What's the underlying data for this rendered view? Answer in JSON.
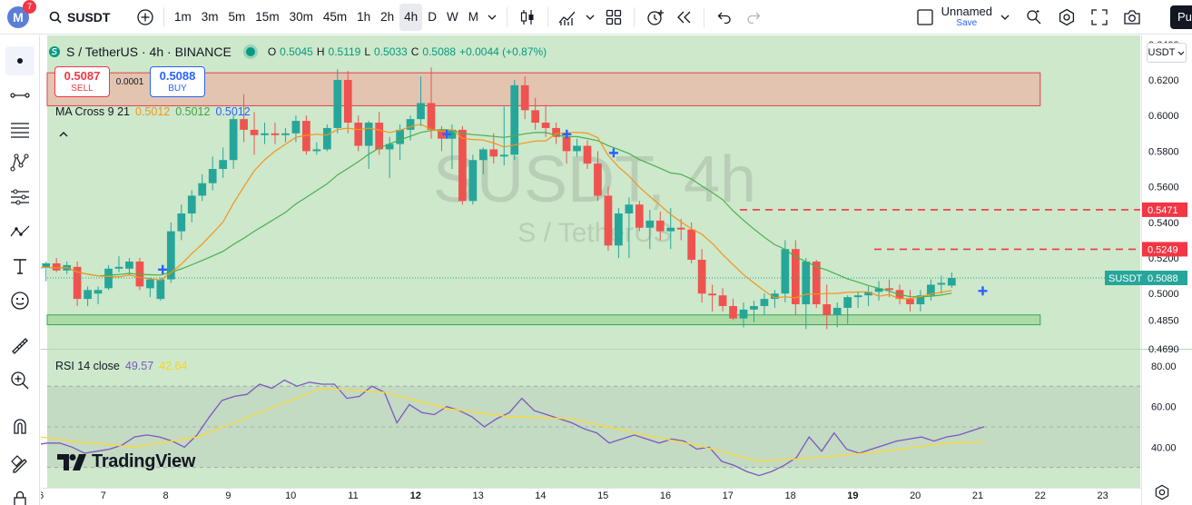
{
  "toolbar": {
    "notification_count": "7",
    "logo_letter": "M",
    "symbol": "SUSDT",
    "intervals": [
      "1m",
      "3m",
      "5m",
      "15m",
      "30m",
      "45m",
      "1h",
      "2h",
      "4h",
      "D",
      "W",
      "M"
    ],
    "active_interval": "4h",
    "layout_name": "Unnamed",
    "layout_save": "Save",
    "publish": "Pu"
  },
  "legend": {
    "title": "S / TetherUS · 4h · BINANCE",
    "open_k": "O",
    "open": "0.5045",
    "high_k": "H",
    "high": "0.5119",
    "low_k": "L",
    "low": "0.5033",
    "close_k": "C",
    "close": "0.5088",
    "change": "+0.0044 (+0.87%)"
  },
  "trade": {
    "sell_price": "0.5087",
    "sell_label": "SELL",
    "spread": "0.0001",
    "buy_price": "0.5088",
    "buy_label": "BUY"
  },
  "ma_legend": {
    "name": "MA Cross 9 21",
    "v1": "0.5012",
    "v2": "0.5012",
    "v3": "0.5012"
  },
  "rsi_legend": {
    "name": "RSI 14 close",
    "rsi": "49.57",
    "rsi_ma": "42.64"
  },
  "watermark": {
    "main": "SUSDT, 4h",
    "sub": "S / TetherUS"
  },
  "branding": "TradingView",
  "currency": "USDT",
  "price_axis": {
    "ticks": [
      "0.6400",
      "0.6200",
      "0.6000",
      "0.5800",
      "0.5600",
      "0.5400",
      "0.5200",
      "0.5000",
      "0.4850",
      "0.4690"
    ],
    "tag_symbol": "SUSDT",
    "tag_price": "0.5088",
    "level_1": "0.5471",
    "level_2": "0.5249"
  },
  "rsi_axis": {
    "ticks": [
      "80.00",
      "60.00",
      "40.00"
    ]
  },
  "time_axis": {
    "ticks": [
      "6",
      "7",
      "8",
      "9",
      "10",
      "11",
      "12",
      "13",
      "14",
      "15",
      "16",
      "17",
      "18",
      "19",
      "20",
      "21",
      "22",
      "23"
    ],
    "bold": [
      "12",
      "19"
    ]
  },
  "colors": {
    "up": "#26a69a",
    "down": "#ef5350",
    "ma_fast": "#f7931a",
    "ma_slow": "#4caf50",
    "rsi": "#7e57c2",
    "rsi_ma": "#fdd835",
    "accent": "#2962ff",
    "level": "#f23645"
  },
  "chart_data": {
    "type": "candlestick",
    "interval": "4h",
    "x_unit": "day of month (6 candles per day)",
    "start_day": 5.5,
    "ylim": [
      0.469,
      0.645
    ],
    "candles": [
      [
        0.521,
        0.525,
        0.513,
        0.516
      ],
      [
        0.515,
        0.519,
        0.511,
        0.518
      ],
      [
        0.518,
        0.519,
        0.506,
        0.508
      ],
      [
        0.515,
        0.518,
        0.507,
        0.517
      ],
      [
        0.517,
        0.52,
        0.512,
        0.513
      ],
      [
        0.513,
        0.518,
        0.511,
        0.516
      ],
      [
        0.515,
        0.518,
        0.493,
        0.497
      ],
      [
        0.497,
        0.504,
        0.493,
        0.502
      ],
      [
        0.5,
        0.504,
        0.494,
        0.502
      ],
      [
        0.503,
        0.516,
        0.502,
        0.514
      ],
      [
        0.514,
        0.521,
        0.512,
        0.515
      ],
      [
        0.514,
        0.52,
        0.51,
        0.518
      ],
      [
        0.518,
        0.52,
        0.502,
        0.504
      ],
      [
        0.503,
        0.509,
        0.498,
        0.508
      ],
      [
        0.497,
        0.509,
        0.496,
        0.508
      ],
      [
        0.508,
        0.54,
        0.506,
        0.535
      ],
      [
        0.535,
        0.55,
        0.53,
        0.545
      ],
      [
        0.545,
        0.558,
        0.54,
        0.555
      ],
      [
        0.555,
        0.567,
        0.552,
        0.562
      ],
      [
        0.562,
        0.577,
        0.558,
        0.57
      ],
      [
        0.57,
        0.582,
        0.565,
        0.575
      ],
      [
        0.575,
        0.6,
        0.57,
        0.598
      ],
      [
        0.598,
        0.612,
        0.585,
        0.592
      ],
      [
        0.592,
        0.602,
        0.578,
        0.589
      ],
      [
        0.589,
        0.596,
        0.584,
        0.59
      ],
      [
        0.59,
        0.596,
        0.584,
        0.589
      ],
      [
        0.589,
        0.593,
        0.585,
        0.59
      ],
      [
        0.59,
        0.6,
        0.585,
        0.597
      ],
      [
        0.597,
        0.6,
        0.578,
        0.58
      ],
      [
        0.58,
        0.585,
        0.578,
        0.581
      ],
      [
        0.581,
        0.595,
        0.58,
        0.593
      ],
      [
        0.593,
        0.626,
        0.59,
        0.62
      ],
      [
        0.62,
        0.625,
        0.59,
        0.596
      ],
      [
        0.596,
        0.6,
        0.58,
        0.583
      ],
      [
        0.583,
        0.597,
        0.57,
        0.596
      ],
      [
        0.596,
        0.602,
        0.578,
        0.581
      ],
      [
        0.581,
        0.588,
        0.565,
        0.584
      ],
      [
        0.584,
        0.595,
        0.575,
        0.592
      ],
      [
        0.592,
        0.6,
        0.586,
        0.598
      ],
      [
        0.598,
        0.622,
        0.594,
        0.607
      ],
      [
        0.607,
        0.627,
        0.587,
        0.592
      ],
      [
        0.592,
        0.594,
        0.58,
        0.587
      ],
      [
        0.587,
        0.595,
        0.57,
        0.592
      ],
      [
        0.592,
        0.594,
        0.55,
        0.552
      ],
      [
        0.552,
        0.578,
        0.55,
        0.575
      ],
      [
        0.575,
        0.582,
        0.567,
        0.581
      ],
      [
        0.581,
        0.59,
        0.573,
        0.577
      ],
      [
        0.577,
        0.605,
        0.572,
        0.578
      ],
      [
        0.578,
        0.62,
        0.575,
        0.617
      ],
      [
        0.617,
        0.622,
        0.598,
        0.603
      ],
      [
        0.603,
        0.61,
        0.592,
        0.596
      ],
      [
        0.596,
        0.606,
        0.588,
        0.593
      ],
      [
        0.593,
        0.596,
        0.584,
        0.588
      ],
      [
        0.588,
        0.59,
        0.573,
        0.58
      ],
      [
        0.58,
        0.587,
        0.577,
        0.583
      ],
      [
        0.583,
        0.586,
        0.57,
        0.573
      ],
      [
        0.573,
        0.58,
        0.552,
        0.555
      ],
      [
        0.555,
        0.56,
        0.524,
        0.527
      ],
      [
        0.527,
        0.548,
        0.52,
        0.545
      ],
      [
        0.545,
        0.554,
        0.52,
        0.55
      ],
      [
        0.55,
        0.552,
        0.535,
        0.537
      ],
      [
        0.537,
        0.547,
        0.525,
        0.541
      ],
      [
        0.541,
        0.546,
        0.53,
        0.535
      ],
      [
        0.535,
        0.548,
        0.525,
        0.537
      ],
      [
        0.537,
        0.542,
        0.53,
        0.536
      ],
      [
        0.536,
        0.54,
        0.517,
        0.519
      ],
      [
        0.519,
        0.525,
        0.495,
        0.5
      ],
      [
        0.5,
        0.505,
        0.49,
        0.499
      ],
      [
        0.499,
        0.503,
        0.49,
        0.493
      ],
      [
        0.493,
        0.497,
        0.485,
        0.486
      ],
      [
        0.486,
        0.495,
        0.481,
        0.491
      ],
      [
        0.491,
        0.496,
        0.484,
        0.493
      ],
      [
        0.493,
        0.5,
        0.488,
        0.497
      ],
      [
        0.497,
        0.502,
        0.492,
        0.5
      ],
      [
        0.5,
        0.53,
        0.495,
        0.525
      ],
      [
        0.525,
        0.53,
        0.488,
        0.494
      ],
      [
        0.494,
        0.52,
        0.48,
        0.518
      ],
      [
        0.518,
        0.519,
        0.492,
        0.494
      ],
      [
        0.494,
        0.505,
        0.48,
        0.488
      ],
      [
        0.488,
        0.495,
        0.481,
        0.492
      ],
      [
        0.492,
        0.499,
        0.483,
        0.498
      ],
      [
        0.498,
        0.501,
        0.492,
        0.499
      ],
      [
        0.499,
        0.504,
        0.493,
        0.501
      ],
      [
        0.501,
        0.507,
        0.496,
        0.503
      ],
      [
        0.503,
        0.508,
        0.498,
        0.502
      ],
      [
        0.502,
        0.505,
        0.494,
        0.497
      ],
      [
        0.497,
        0.502,
        0.49,
        0.494
      ],
      [
        0.494,
        0.502,
        0.49,
        0.499
      ],
      [
        0.499,
        0.508,
        0.496,
        0.505
      ],
      [
        0.505,
        0.51,
        0.5,
        0.506
      ],
      [
        0.5045,
        0.5119,
        0.5033,
        0.5088
      ]
    ],
    "zones": [
      {
        "type": "resistance",
        "y": [
          0.6055,
          0.624
        ],
        "x": [
          5.5,
          22.0
        ]
      },
      {
        "type": "support",
        "y": [
          0.4825,
          0.488
        ],
        "x": [
          5.5,
          22.0
        ]
      }
    ],
    "levels": [
      0.5471,
      0.5249
    ],
    "rsi": [
      [
        5.5,
        44
      ],
      [
        5.7,
        40
      ],
      [
        5.9,
        41
      ],
      [
        6.1,
        42
      ],
      [
        6.3,
        42
      ],
      [
        6.5,
        40
      ],
      [
        6.7,
        37
      ],
      [
        6.9,
        38
      ],
      [
        7.1,
        39
      ],
      [
        7.3,
        41
      ],
      [
        7.5,
        45
      ],
      [
        7.7,
        46
      ],
      [
        7.9,
        45
      ],
      [
        8.1,
        43
      ],
      [
        8.3,
        40
      ],
      [
        8.5,
        46
      ],
      [
        8.7,
        55
      ],
      [
        8.9,
        63
      ],
      [
        9.1,
        65
      ],
      [
        9.3,
        66
      ],
      [
        9.5,
        71
      ],
      [
        9.7,
        69
      ],
      [
        9.9,
        73
      ],
      [
        10.1,
        70
      ],
      [
        10.3,
        72
      ],
      [
        10.5,
        71
      ],
      [
        10.7,
        71
      ],
      [
        10.9,
        64
      ],
      [
        11.1,
        65
      ],
      [
        11.3,
        70
      ],
      [
        11.5,
        67
      ],
      [
        11.7,
        52
      ],
      [
        11.9,
        61
      ],
      [
        12.1,
        57
      ],
      [
        12.3,
        56
      ],
      [
        12.5,
        60
      ],
      [
        12.7,
        58
      ],
      [
        12.9,
        55
      ],
      [
        13.1,
        50
      ],
      [
        13.3,
        54
      ],
      [
        13.5,
        57
      ],
      [
        13.7,
        64
      ],
      [
        13.9,
        58
      ],
      [
        14.1,
        56
      ],
      [
        14.3,
        54
      ],
      [
        14.5,
        52
      ],
      [
        14.7,
        49
      ],
      [
        14.9,
        47
      ],
      [
        15.1,
        42
      ],
      [
        15.3,
        44
      ],
      [
        15.5,
        46
      ],
      [
        15.7,
        44
      ],
      [
        15.9,
        42
      ],
      [
        16.1,
        44
      ],
      [
        16.3,
        43
      ],
      [
        16.5,
        39
      ],
      [
        16.7,
        40
      ],
      [
        16.9,
        33
      ],
      [
        17.1,
        31
      ],
      [
        17.3,
        28
      ],
      [
        17.5,
        26
      ],
      [
        17.7,
        28
      ],
      [
        17.9,
        31
      ],
      [
        18.1,
        35
      ],
      [
        18.3,
        45
      ],
      [
        18.5,
        38
      ],
      [
        18.7,
        47
      ],
      [
        18.9,
        39
      ],
      [
        19.1,
        37
      ],
      [
        19.3,
        39
      ],
      [
        19.5,
        41
      ],
      [
        19.7,
        43
      ],
      [
        19.9,
        44
      ],
      [
        20.1,
        45
      ],
      [
        20.3,
        43
      ],
      [
        20.5,
        45
      ],
      [
        20.7,
        46
      ],
      [
        20.9,
        48
      ],
      [
        21.1,
        50
      ]
    ],
    "rsi_ma": [
      [
        5.5,
        47
      ],
      [
        6.5,
        43
      ],
      [
        7.5,
        40
      ],
      [
        8.5,
        45
      ],
      [
        9.5,
        57
      ],
      [
        10.5,
        69
      ],
      [
        11.5,
        67
      ],
      [
        12.5,
        59
      ],
      [
        13.5,
        55
      ],
      [
        14.5,
        54
      ],
      [
        15.5,
        47
      ],
      [
        16.5,
        41
      ],
      [
        17.5,
        33
      ],
      [
        18.5,
        35
      ],
      [
        19.5,
        38
      ],
      [
        20.5,
        42
      ],
      [
        21.1,
        42.64
      ]
    ],
    "rsi_ylim": [
      20,
      88
    ],
    "rsi_bands": [
      70,
      50,
      30
    ],
    "markers": [
      {
        "x": 7.95,
        "y": 0.5135,
        "type": "cross"
      },
      {
        "x": 12.5,
        "y": 0.5895,
        "type": "cross"
      },
      {
        "x": 14.42,
        "y": 0.5895,
        "type": "cross"
      },
      {
        "x": 15.17,
        "y": 0.579,
        "type": "cross"
      },
      {
        "x": 21.08,
        "y": 0.5015,
        "type": "cross"
      }
    ]
  }
}
